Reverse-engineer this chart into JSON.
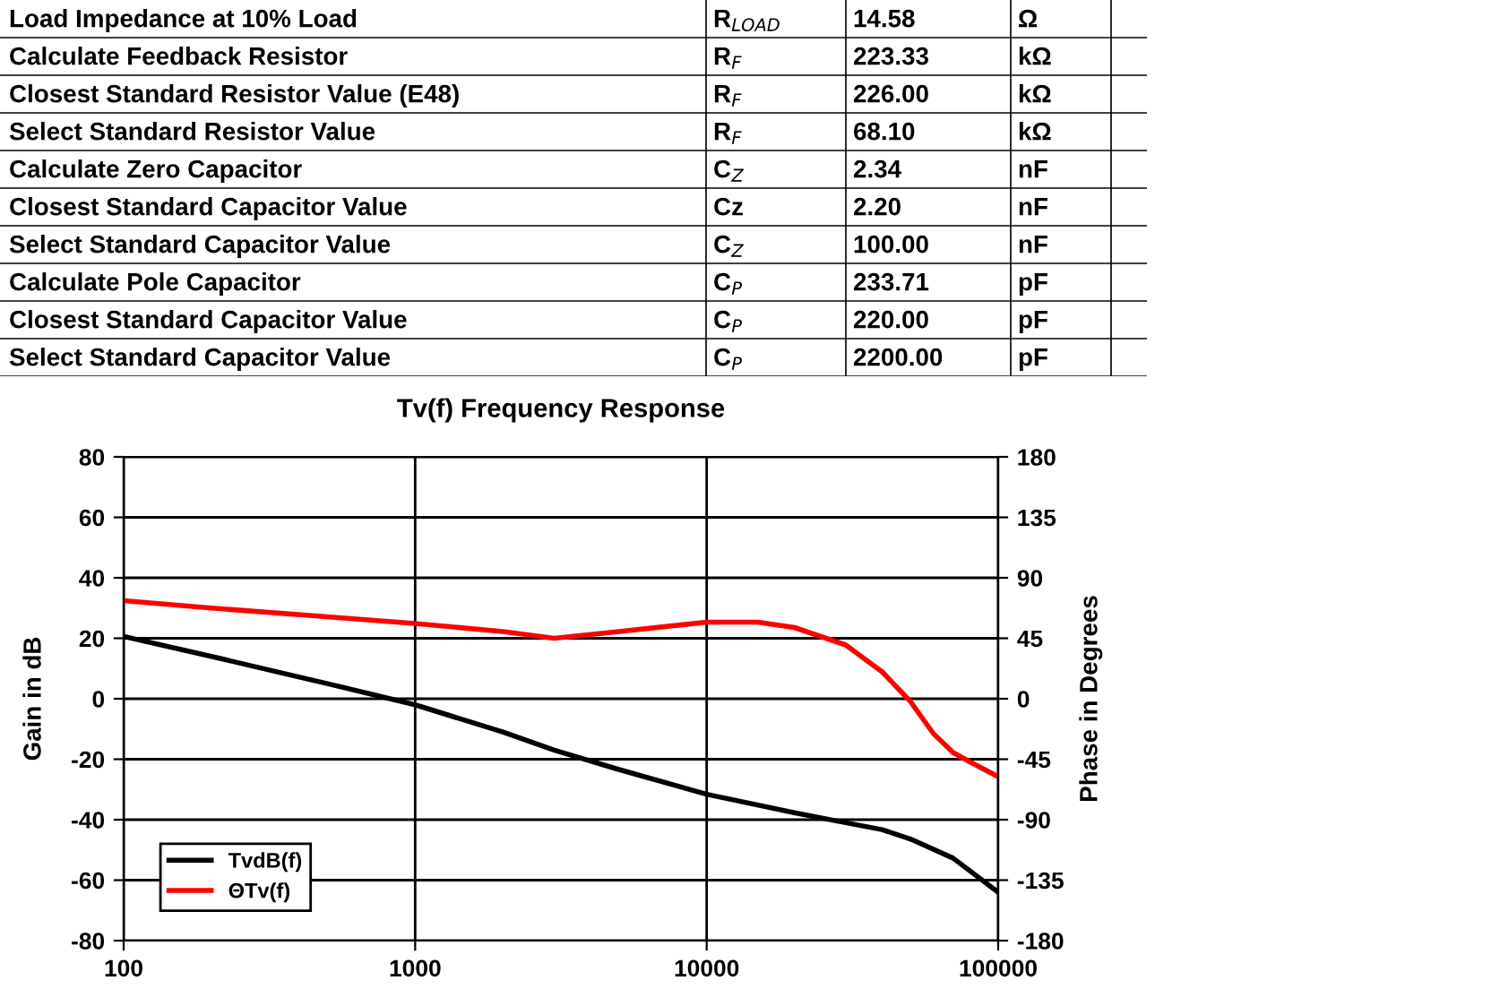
{
  "chart_data": [
    {
      "type": "other",
      "annotations": [
        "Load Impedance at 10% Load",
        "R$_{LOAD}$",
        "14.58",
        "Ω",
        "Calculate Feedback Resistor",
        "R$_{F}$",
        "223.33",
        "kΩ",
        "Closest Standard Resistor Value (E48)",
        "R$_{F}$",
        "226.00",
        "kΩ",
        "Select Standard Resistor Value",
        "R$_{F}$",
        "68.10",
        "kΩ",
        "Calculate Zero Capacitor",
        "C$_{Z}$",
        "2.34",
        "nF",
        "Closest Standard Capacitor Value",
        "Cz",
        "2.20",
        "nF",
        "Select Standard Capacitor Value",
        "C$_{Z}$",
        "100.00",
        "nF",
        "Calculate Pole Capacitor",
        "C$_{P}$",
        "233.71",
        "pF",
        "Closest Standard Capacitor Value",
        "C$_{P}$",
        "220.00",
        "pF",
        "Select Standard Capacitor Value",
        "C$_{P}$",
        "2200.00",
        "pF"
      ]
    },
    {
      "type": "line",
      "title": "Tv(f) Frequency Response",
      "ylabel": "Gain in dB",
      "y2label": "Phase in Degrees",
      "log": "x",
      "grid": true,
      "legend": "bottom left",
      "marker": "none",
      "line_style": "solid",
      "xlim": [
        100,
        100000
      ],
      "xticks": [
        100,
        1000,
        10000,
        100000
      ],
      "ylim": [
        -80,
        80
      ],
      "yticks": [
        -80,
        -60,
        -40,
        -20,
        0,
        20,
        40,
        60,
        80
      ],
      "y2lim": [
        -180,
        180
      ],
      "y2ticks": [
        -180,
        -135,
        -90,
        -45,
        0,
        45,
        90,
        135,
        180
      ],
      "series": [
        {
          "name": "TvdB(f)",
          "color": "#000000",
          "x": [
            100,
            200,
            500,
            1000,
            2000,
            3000,
            5000,
            10000,
            20000,
            30000,
            40000,
            50000,
            70000,
            100000
          ],
          "values": [
            20.6,
            14,
            5,
            -2,
            -11,
            -17,
            -23.4,
            -31.6,
            -37.7,
            -41,
            -43.3,
            -46.4,
            -52.7,
            -64
          ]
        },
        {
          "name": "ΘTv(f)",
          "color": "#ff0000",
          "axis": "y2",
          "x": [
            100,
            200,
            500,
            1000,
            2000,
            3000,
            5000,
            10000,
            15000,
            20000,
            30000,
            40000,
            50000,
            60000,
            70000,
            80000,
            100000
          ],
          "values": [
            73,
            67.5,
            61,
            56,
            50,
            45,
            50,
            57,
            57,
            53,
            40,
            20,
            -2,
            -26,
            -40,
            -47,
            -58
          ]
        }
      ]
    }
  ]
}
